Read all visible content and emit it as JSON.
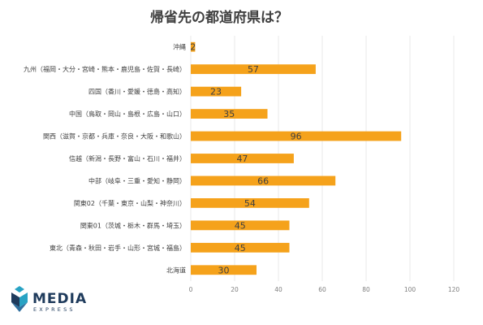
{
  "chart_data": {
    "type": "bar",
    "orientation": "horizontal",
    "title": "帰省先の都道府県は？",
    "categories": [
      "沖縄",
      "九州（福岡・大分・宮崎・熊本・鹿児島・佐賀・長崎）",
      "四国（香川・愛媛・徳島・高知）",
      "中国（鳥取・岡山・島根・広島・山口）",
      "関西（滋賀・京都・兵庫・奈良・大阪・和歌山）",
      "信越（新潟・長野・富山・石川・福井）",
      "中部（岐阜・三重・愛知・静岡）",
      "関東02（千葉・東京・山梨・神奈川）",
      "関東01（茨城・栃木・群馬・埼玉）",
      "東北（青森・秋田・岩手・山形・宮城・福島）",
      "北海道"
    ],
    "values": [
      2,
      57,
      23,
      35,
      96,
      47,
      66,
      54,
      45,
      45,
      30
    ],
    "xlim": [
      0,
      120
    ],
    "xticks": [
      0,
      20,
      40,
      60,
      80,
      100,
      120
    ],
    "xlabel": "",
    "ylabel": "",
    "grid": true,
    "legend": "none",
    "bar_color": "#f5a21b"
  },
  "logo": {
    "name": "MEDIA",
    "sub": "EXPRESS",
    "color": "#1f3b5c",
    "accent": "#29a3c4"
  }
}
